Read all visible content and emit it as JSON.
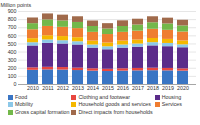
{
  "chart_data": {
    "type": "bar",
    "stacked": true,
    "grid": true,
    "legend": "bottom",
    "y_label": "Million points",
    "categories": [
      "2010",
      "2011",
      "2012",
      "2013",
      "2014",
      "2015",
      "2016",
      "2017",
      "2018",
      "2019",
      "2020"
    ],
    "series": [
      {
        "name": "Food",
        "color": "#3a75c4",
        "values": [
          175,
          180,
          178,
          172,
          165,
          160,
          165,
          168,
          170,
          168,
          165
        ]
      },
      {
        "name": "Clothing and footwear",
        "color": "#e8473f",
        "values": [
          30,
          32,
          31,
          30,
          29,
          28,
          29,
          30,
          31,
          30,
          28
        ]
      },
      {
        "name": "Housing",
        "color": "#5b2c8a",
        "values": [
          270,
          295,
          290,
          285,
          255,
          240,
          255,
          262,
          275,
          268,
          260
        ]
      },
      {
        "name": "Mobility",
        "color": "#8cc8e8",
        "values": [
          40,
          42,
          41,
          40,
          38,
          37,
          38,
          39,
          40,
          40,
          36
        ]
      },
      {
        "name": "Household goods and services",
        "color": "#f5b800",
        "values": [
          50,
          52,
          51,
          50,
          48,
          46,
          48,
          49,
          51,
          50,
          48
        ]
      },
      {
        "name": "Services",
        "color": "#ef7d31",
        "values": [
          110,
          115,
          114,
          112,
          108,
          105,
          108,
          110,
          114,
          112,
          110
        ]
      },
      {
        "name": "Gross capital formation",
        "color": "#73b84a",
        "values": [
          75,
          80,
          78,
          76,
          72,
          68,
          72,
          75,
          80,
          78,
          75
        ]
      },
      {
        "name": "Direct impacts from households",
        "color": "#a06a4b",
        "values": [
          70,
          74,
          72,
          70,
          68,
          66,
          70,
          72,
          74,
          72,
          70
        ]
      }
    ],
    "ylim": [
      0,
      900
    ],
    "yticks": [
      0,
      100,
      200,
      300,
      400,
      500,
      600,
      700,
      800,
      900
    ]
  }
}
